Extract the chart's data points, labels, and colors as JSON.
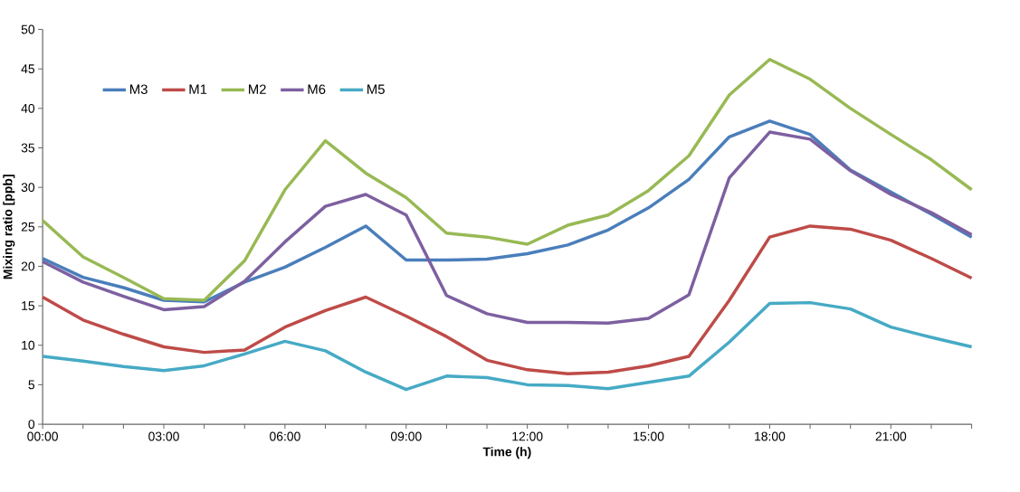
{
  "chart_data": {
    "type": "line",
    "xlabel": "Time (h)",
    "ylabel": "Mixing ratio [ppb]",
    "x": [
      0,
      1,
      2,
      3,
      4,
      5,
      6,
      7,
      8,
      9,
      10,
      11,
      12,
      13,
      14,
      15,
      16,
      17,
      18,
      19,
      20,
      21,
      22,
      23
    ],
    "xlim": [
      0,
      23
    ],
    "xticks": [
      {
        "value": 0,
        "label": "00:00"
      },
      {
        "value": 1,
        "label": null
      },
      {
        "value": 2,
        "label": null
      },
      {
        "value": 3,
        "label": "03:00"
      },
      {
        "value": 4,
        "label": null
      },
      {
        "value": 5,
        "label": null
      },
      {
        "value": 6,
        "label": "06:00"
      },
      {
        "value": 7,
        "label": null
      },
      {
        "value": 8,
        "label": null
      },
      {
        "value": 9,
        "label": "09:00"
      },
      {
        "value": 10,
        "label": null
      },
      {
        "value": 11,
        "label": null
      },
      {
        "value": 12,
        "label": "12:00"
      },
      {
        "value": 13,
        "label": null
      },
      {
        "value": 14,
        "label": null
      },
      {
        "value": 15,
        "label": "15:00"
      },
      {
        "value": 16,
        "label": null
      },
      {
        "value": 17,
        "label": null
      },
      {
        "value": 18,
        "label": "18:00"
      },
      {
        "value": 19,
        "label": null
      },
      {
        "value": 20,
        "label": null
      },
      {
        "value": 21,
        "label": "21:00"
      },
      {
        "value": 22,
        "label": null
      },
      {
        "value": 23,
        "label": null
      }
    ],
    "ylim": [
      0,
      50
    ],
    "yticks": [
      0,
      5,
      10,
      15,
      20,
      25,
      30,
      35,
      40,
      45,
      50
    ],
    "legend": "top left",
    "grid": false,
    "line_style": "solid",
    "series": [
      {
        "name": "M3",
        "color": "#4a7ebb",
        "values": [
          21.0,
          18.6,
          17.3,
          15.7,
          15.5,
          18.0,
          19.9,
          22.4,
          25.1,
          20.8,
          20.8,
          20.9,
          21.6,
          22.7,
          24.6,
          27.4,
          31.0,
          36.4,
          38.4,
          36.7,
          32.2,
          29.4,
          26.6,
          23.7
        ]
      },
      {
        "name": "M1",
        "color": "#be4b48",
        "values": [
          16.1,
          13.2,
          11.4,
          9.8,
          9.1,
          9.4,
          12.3,
          14.4,
          16.1,
          13.7,
          11.1,
          8.1,
          6.9,
          6.4,
          6.6,
          7.4,
          8.6,
          15.7,
          23.7,
          25.1,
          24.7,
          23.3,
          21.0,
          18.5
        ]
      },
      {
        "name": "M2",
        "color": "#98b954",
        "values": [
          25.8,
          21.2,
          18.6,
          15.9,
          15.7,
          20.7,
          29.7,
          35.9,
          31.8,
          28.7,
          24.2,
          23.7,
          22.8,
          25.2,
          26.5,
          29.6,
          34.0,
          41.7,
          46.2,
          43.7,
          40.0,
          36.7,
          33.5,
          29.7
        ]
      },
      {
        "name": "M6",
        "color": "#7d60a0",
        "values": [
          20.6,
          18.0,
          16.2,
          14.5,
          14.9,
          18.1,
          23.1,
          27.6,
          29.1,
          26.5,
          16.3,
          14.0,
          12.9,
          12.9,
          12.8,
          13.4,
          16.4,
          31.2,
          37.0,
          36.1,
          32.1,
          29.1,
          26.8,
          24.0
        ]
      },
      {
        "name": "M5",
        "color": "#46aac5",
        "values": [
          8.6,
          8.0,
          7.3,
          6.8,
          7.4,
          8.9,
          10.5,
          9.3,
          6.6,
          4.4,
          6.1,
          5.9,
          5.0,
          4.9,
          4.5,
          5.3,
          6.1,
          10.4,
          15.3,
          15.4,
          14.6,
          12.3,
          11.0,
          9.8
        ]
      }
    ]
  }
}
